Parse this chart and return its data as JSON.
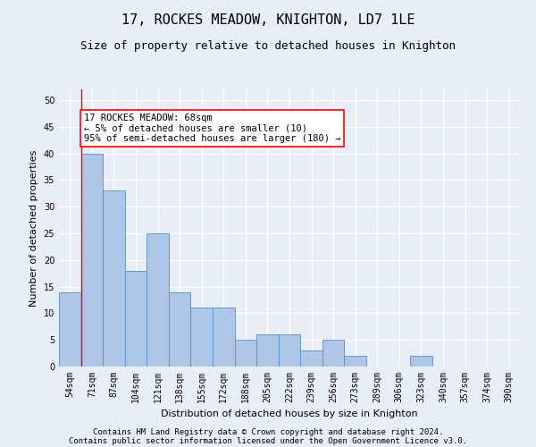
{
  "title": "17, ROCKES MEADOW, KNIGHTON, LD7 1LE",
  "subtitle": "Size of property relative to detached houses in Knighton",
  "xlabel": "Distribution of detached houses by size in Knighton",
  "ylabel": "Number of detached properties",
  "categories": [
    "54sqm",
    "71sqm",
    "87sqm",
    "104sqm",
    "121sqm",
    "138sqm",
    "155sqm",
    "172sqm",
    "188sqm",
    "205sqm",
    "222sqm",
    "239sqm",
    "256sqm",
    "273sqm",
    "289sqm",
    "306sqm",
    "323sqm",
    "340sqm",
    "357sqm",
    "374sqm",
    "390sqm"
  ],
  "values": [
    14,
    40,
    33,
    18,
    25,
    14,
    11,
    11,
    5,
    6,
    6,
    3,
    5,
    2,
    0,
    0,
    2,
    0,
    0,
    0,
    0
  ],
  "bar_color": "#aec6e8",
  "bar_edge_color": "#5a8fc2",
  "vline_x": 0.5,
  "annotation_text": "17 ROCKES MEADOW: 68sqm\n← 5% of detached houses are smaller (10)\n95% of semi-detached houses are larger (180) →",
  "annotation_box_color": "white",
  "annotation_box_edge": "red",
  "ylim": [
    0,
    52
  ],
  "yticks": [
    0,
    5,
    10,
    15,
    20,
    25,
    30,
    35,
    40,
    45,
    50
  ],
  "footer1": "Contains HM Land Registry data © Crown copyright and database right 2024.",
  "footer2": "Contains public sector information licensed under the Open Government Licence v3.0.",
  "background_color": "#e8eef7",
  "grid_color": "white",
  "title_fontsize": 11,
  "subtitle_fontsize": 9,
  "axis_label_fontsize": 8,
  "tick_fontsize": 7,
  "footer_fontsize": 6.5,
  "annotation_fontsize": 7.5
}
